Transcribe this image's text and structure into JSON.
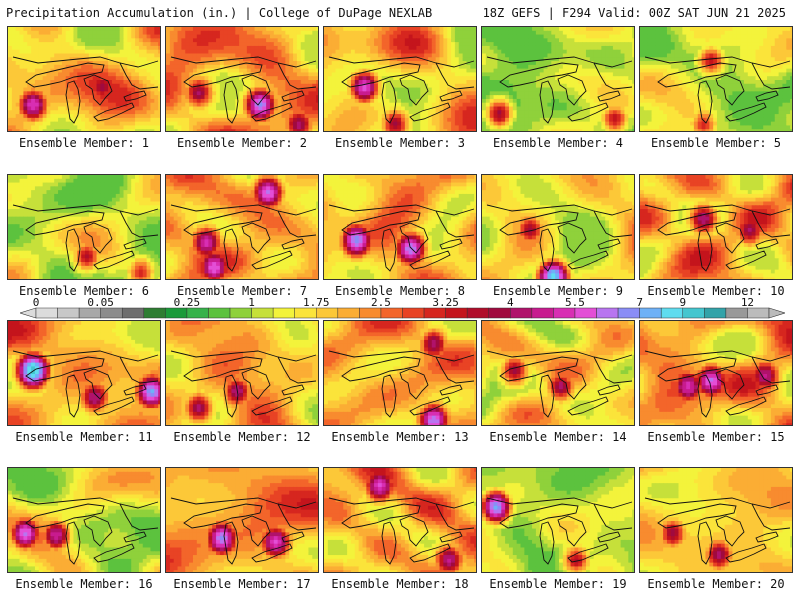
{
  "header": {
    "left": "Precipitation Accumulation (in.) | College of DuPage NEXLAB",
    "right": "18Z GEFS | F294 Valid: 00Z SAT JUN 21 2025"
  },
  "member_prefix": "Ensemble Member: ",
  "members": [
    {
      "label": "Ensemble Member: 1",
      "base": 1.9,
      "var": 1.3,
      "seed": 11,
      "hi": [
        [
          0.15,
          0.72,
          4.5
        ],
        [
          0.6,
          0.55,
          3.0
        ]
      ]
    },
    {
      "label": "Ensemble Member: 2",
      "base": 2.1,
      "var": 1.3,
      "seed": 23,
      "hi": [
        [
          0.6,
          0.72,
          5.5
        ],
        [
          0.2,
          0.6,
          3.0
        ],
        [
          0.85,
          0.9,
          3.2
        ]
      ]
    },
    {
      "label": "Ensemble Member: 3",
      "base": 1.7,
      "var": 1.3,
      "seed": 37,
      "hi": [
        [
          0.25,
          0.55,
          4.8
        ],
        [
          0.45,
          0.9,
          3.0
        ]
      ]
    },
    {
      "label": "Ensemble Member: 4",
      "base": 1.0,
      "var": 1.0,
      "seed": 41,
      "hi": [
        [
          0.1,
          0.8,
          3.3
        ],
        [
          0.85,
          0.85,
          3.0
        ]
      ]
    },
    {
      "label": "Ensemble Member: 5",
      "base": 1.2,
      "var": 1.0,
      "seed": 53,
      "hi": [
        [
          0.45,
          0.3,
          2.8
        ],
        [
          0.4,
          0.9,
          2.6
        ]
      ]
    },
    {
      "label": "Ensemble Member: 6",
      "base": 1.2,
      "var": 1.0,
      "seed": 61,
      "hi": [
        [
          0.5,
          0.75,
          3.0
        ],
        [
          0.85,
          0.9,
          2.6
        ]
      ]
    },
    {
      "label": "Ensemble Member: 7",
      "base": 2.0,
      "var": 1.3,
      "seed": 71,
      "hi": [
        [
          0.65,
          0.15,
          5.2
        ],
        [
          0.25,
          0.62,
          4.2
        ],
        [
          0.3,
          0.85,
          5.0
        ]
      ]
    },
    {
      "label": "Ensemble Member: 8",
      "base": 2.0,
      "var": 1.3,
      "seed": 83,
      "hi": [
        [
          0.2,
          0.6,
          6.0
        ],
        [
          0.55,
          0.68,
          5.5
        ]
      ]
    },
    {
      "label": "Ensemble Member: 9",
      "base": 1.6,
      "var": 1.2,
      "seed": 97,
      "hi": [
        [
          0.45,
          0.95,
          7.5
        ],
        [
          0.3,
          0.5,
          3.0
        ]
      ]
    },
    {
      "label": "Ensemble Member: 10",
      "base": 2.0,
      "var": 1.2,
      "seed": 103,
      "hi": [
        [
          0.4,
          0.4,
          3.4
        ],
        [
          0.7,
          0.5,
          3.2
        ]
      ]
    },
    {
      "label": "Ensemble Member: 11",
      "base": 2.1,
      "var": 1.3,
      "seed": 113,
      "hi": [
        [
          0.15,
          0.45,
          8.5
        ],
        [
          0.92,
          0.65,
          6.0
        ],
        [
          0.55,
          0.7,
          3.4
        ]
      ]
    },
    {
      "label": "Ensemble Member: 12",
      "base": 1.9,
      "var": 1.3,
      "seed": 127,
      "hi": [
        [
          0.45,
          0.65,
          3.4
        ],
        [
          0.2,
          0.8,
          3.2
        ]
      ]
    },
    {
      "label": "Ensemble Member: 13",
      "base": 2.0,
      "var": 1.3,
      "seed": 131,
      "hi": [
        [
          0.7,
          0.92,
          5.5
        ],
        [
          0.7,
          0.2,
          3.3
        ]
      ]
    },
    {
      "label": "Ensemble Member: 14",
      "base": 1.7,
      "var": 1.2,
      "seed": 139,
      "hi": [
        [
          0.5,
          0.6,
          3.3
        ],
        [
          0.2,
          0.45,
          3.0
        ]
      ]
    },
    {
      "label": "Ensemble Member: 15",
      "base": 2.2,
      "var": 1.2,
      "seed": 149,
      "hi": [
        [
          0.45,
          0.55,
          5.0
        ],
        [
          0.3,
          0.6,
          4.2
        ],
        [
          0.8,
          0.5,
          3.5
        ]
      ]
    },
    {
      "label": "Ensemble Member: 16",
      "base": 1.4,
      "var": 1.2,
      "seed": 151,
      "hi": [
        [
          0.1,
          0.6,
          5.5
        ],
        [
          0.3,
          0.62,
          4.2
        ]
      ]
    },
    {
      "label": "Ensemble Member: 17",
      "base": 2.2,
      "var": 1.3,
      "seed": 163,
      "hi": [
        [
          0.35,
          0.65,
          5.5
        ],
        [
          0.7,
          0.68,
          4.5
        ]
      ]
    },
    {
      "label": "Ensemble Member: 18",
      "base": 2.1,
      "var": 1.2,
      "seed": 173,
      "hi": [
        [
          0.35,
          0.15,
          4.5
        ],
        [
          0.8,
          0.85,
          3.5
        ]
      ]
    },
    {
      "label": "Ensemble Member: 19",
      "base": 1.1,
      "var": 1.0,
      "seed": 181,
      "hi": [
        [
          0.08,
          0.35,
          6.5
        ],
        [
          0.6,
          0.85,
          3.0
        ]
      ]
    },
    {
      "label": "Ensemble Member: 20",
      "base": 1.8,
      "var": 1.2,
      "seed": 191,
      "hi": [
        [
          0.5,
          0.8,
          3.4
        ],
        [
          0.2,
          0.6,
          3.0
        ]
      ]
    }
  ],
  "colorbar": {
    "tick_labels": [
      "0",
      "0.05",
      "0.25",
      "1",
      "1.75",
      "2.5",
      "3.25",
      "4",
      "5.5",
      "7",
      "9",
      "12"
    ],
    "thresholds": [
      0,
      0.01,
      0.03,
      0.05,
      0.1,
      0.15,
      0.2,
      0.25,
      0.5,
      0.75,
      1.0,
      1.25,
      1.5,
      1.75,
      2.0,
      2.25,
      2.5,
      2.75,
      3.0,
      3.25,
      3.5,
      3.75,
      4.0,
      4.5,
      5.0,
      5.5,
      6.0,
      6.5,
      7.0,
      8.0,
      9.0,
      10.0,
      11.0,
      12.0
    ],
    "colors": [
      "#dcdcdc",
      "#c8c8c8",
      "#a8a8a8",
      "#8c8c8c",
      "#6e6e6e",
      "#2e7d32",
      "#1b9a3a",
      "#36b24a",
      "#5cc23e",
      "#8fd13b",
      "#c6e03a",
      "#f3f33b",
      "#fbe43a",
      "#fcc838",
      "#fbad34",
      "#f88b2f",
      "#f3652a",
      "#e84324",
      "#d6261f",
      "#c4141c",
      "#b00d2a",
      "#a00a3f",
      "#b0126b",
      "#c81b8f",
      "#d82eb3",
      "#e34ed6",
      "#b875f0",
      "#8a8df6",
      "#6eb1f7",
      "#5fdcef",
      "#44c6cf",
      "#33a3a9",
      "#999999",
      "#bbbbbb"
    ]
  }
}
